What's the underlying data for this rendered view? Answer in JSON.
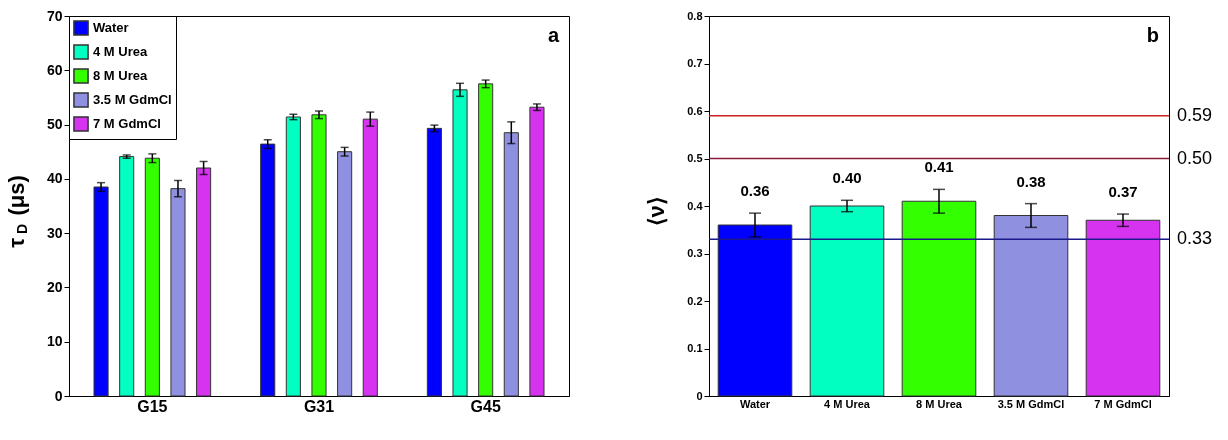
{
  "chart_data": [
    {
      "type": "bar",
      "ylabel": "τ$_{D}$ (μs)",
      "annotations": [
        "a"
      ],
      "categories": [
        "G15",
        "G31",
        "G45"
      ],
      "series": [
        {
          "name": "Water",
          "color": "#0000ff",
          "values": [
            38.5,
            46.4,
            49.3
          ],
          "errors": [
            0.8,
            0.8,
            0.6
          ]
        },
        {
          "name": "4 M Urea",
          "color": "#00ffc0",
          "values": [
            44.1,
            51.4,
            56.4
          ],
          "errors": [
            0.3,
            0.5,
            1.2
          ]
        },
        {
          "name": "8 M Urea",
          "color": "#33ff00",
          "values": [
            43.8,
            51.8,
            57.5
          ],
          "errors": [
            0.8,
            0.7,
            0.7
          ]
        },
        {
          "name": "3.5 M GdmCl",
          "color": "#9090e0",
          "values": [
            38.2,
            45.0,
            48.5
          ],
          "errors": [
            1.5,
            0.8,
            2.0
          ]
        },
        {
          "name": "7 M GdmCl",
          "color": "#d633f0",
          "values": [
            42.0,
            51.0,
            53.2
          ],
          "errors": [
            1.2,
            1.3,
            0.6
          ]
        }
      ],
      "ylim": [
        0,
        70
      ],
      "yticks": [
        0,
        10,
        20,
        30,
        40,
        50,
        60,
        70
      ],
      "legend": "top left",
      "grid": false
    },
    {
      "type": "bar",
      "ylabel": "⟨ν⟩",
      "annotations": [
        "b"
      ],
      "categories": [
        "Water",
        "4 M Urea",
        "8 M Urea",
        "3.5 M GdmCl",
        "7 M GdmCl"
      ],
      "values": [
        0.36,
        0.4,
        0.41,
        0.38,
        0.37
      ],
      "errors": [
        0.025,
        0.012,
        0.025,
        0.025,
        0.013
      ],
      "colors": [
        "#0000ff",
        "#00ffc0",
        "#33ff00",
        "#9090e0",
        "#d633f0"
      ],
      "value_labels": [
        "0.36",
        "0.40",
        "0.41",
        "0.38",
        "0.37"
      ],
      "ylim": [
        0,
        0.8
      ],
      "yticks": [
        0,
        0.1,
        0.2,
        0.3,
        0.4,
        0.5,
        0.6,
        0.7,
        0.8
      ],
      "grid": false,
      "legend": false,
      "ref_lines": [
        {
          "axis": "y",
          "value": 0.59,
          "label": "0.59",
          "color": "#cc2020"
        },
        {
          "axis": "y",
          "value": 0.5,
          "label": "0.50",
          "color": "#8b1a3a"
        },
        {
          "axis": "y",
          "value": 0.33,
          "label": "0.33",
          "color": "#1a1a8a"
        }
      ]
    }
  ]
}
